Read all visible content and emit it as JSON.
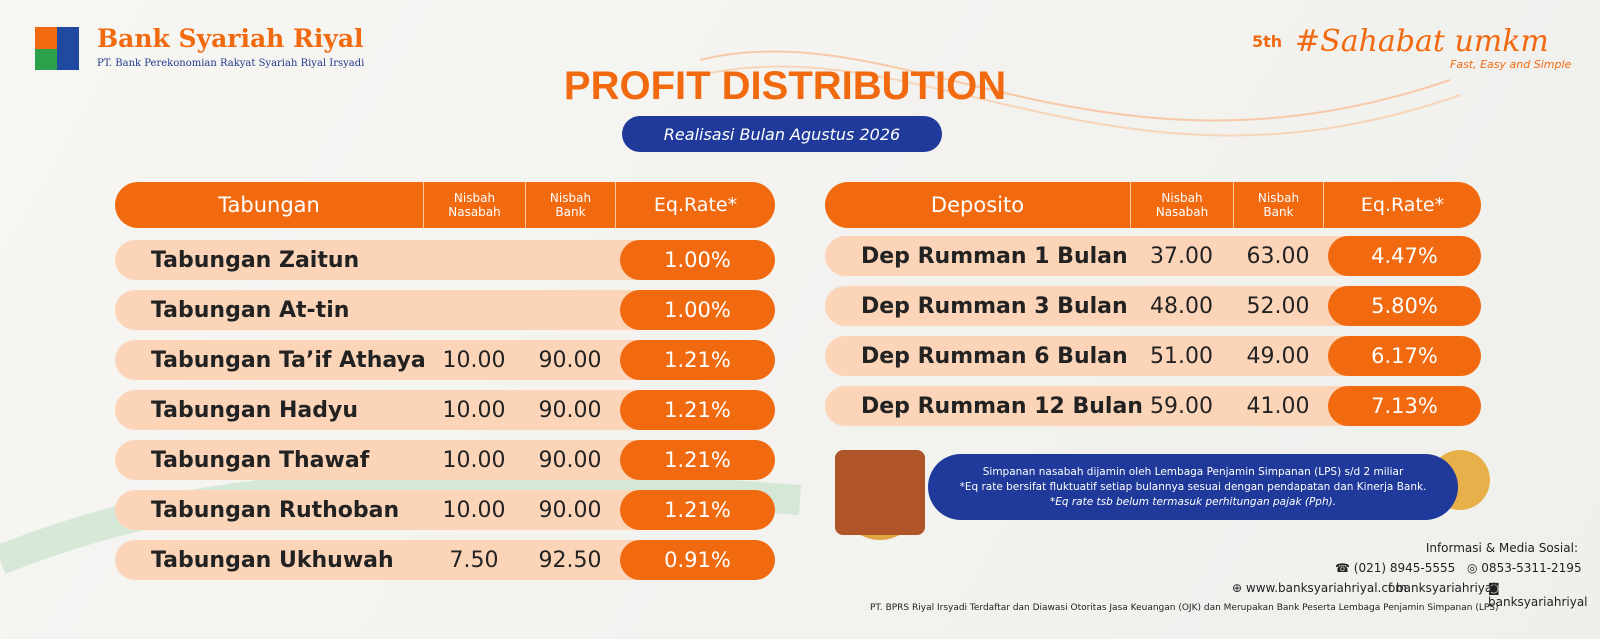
{
  "header": {
    "bank_name": "Bank Syariah Riyal",
    "bank_subtitle": "PT. Bank Perekonomian Rakyat Syariah Riyal Irsyadi"
  },
  "branding": {
    "anniversary": "5th",
    "hashtag": "#Sahabat umkm",
    "tagline": "Fast, Easy and Simple"
  },
  "title": "PROFIT DISTRIBUTION",
  "subtitle": "Realisasi Bulan Agustus 2026",
  "tabungan": {
    "header": [
      "Tabungan",
      "Nisbah Nasabah",
      "Nisbah Bank",
      "Eq.Rate*"
    ],
    "rows": [
      {
        "name": "Tabungan Zaitun",
        "rate": "1.00%"
      },
      {
        "name": "Tabungan At-tin",
        "rate": "1.00%"
      },
      {
        "name": "Tabungan Ta’if Athaya",
        "nasabah": "10.00",
        "bank": "90.00",
        "rate": "1.21%"
      },
      {
        "name": "Tabungan Hadyu",
        "nasabah": "10.00",
        "bank": "90.00",
        "rate": "1.21%"
      },
      {
        "name": "Tabungan Thawaf",
        "nasabah": "10.00",
        "bank": "90.00",
        "rate": "1.21%"
      },
      {
        "name": "Tabungan Ruthoban",
        "nasabah": "10.00",
        "bank": "90.00",
        "rate": "1.21%"
      },
      {
        "name": "Tabungan Ukhuwah",
        "nasabah": "7.50",
        "bank": "92.50",
        "rate": "0.91%"
      }
    ]
  },
  "deposito": {
    "header": [
      "Deposito",
      "Nisbah Nasabah",
      "Nisbah Bank",
      "Eq.Rate*"
    ],
    "rows": [
      {
        "name": "Dep Rumman 1 Bulan",
        "nasabah": "37.00",
        "bank": "63.00",
        "rate": "4.47%"
      },
      {
        "name": "Dep Rumman 3 Bulan",
        "nasabah": "48.00",
        "bank": "52.00",
        "rate": "5.80%"
      },
      {
        "name": "Dep Rumman 6 Bulan",
        "nasabah": "51.00",
        "bank": "49.00",
        "rate": "6.17%"
      },
      {
        "name": "Dep Rumman 12 Bulan",
        "nasabah": "59.00",
        "bank": "41.00",
        "rate": "7.13%"
      }
    ]
  },
  "notice": [
    "Simpanan nasabah dijamin oleh Lembaga Penjamin Simpanan (LPS) s/d 2 miliar",
    "*Eq rate bersifat fluktuatif setiap bulannya sesuai dengan pendapatan dan Kinerja Bank.",
    "*Eq rate tsb belum termasuk perhitungan pajak (Pph)."
  ],
  "contact": {
    "heading": "Informasi & Media Sosial:",
    "phone": "(021) 8945-5555",
    "whatsapp": "0853-5311-2195",
    "website": "www.banksyariahriyal.com",
    "facebook": "banksyariahriyal",
    "instagram": "banksyariahriyal"
  },
  "footer": "PT. BPRS Riyal Irsyadi Terdaftar dan Diawasi Otoritas Jasa Keuangan (OJK) dan Merupakan Bank Peserta Lembaga Penjamin Simpanan (LPS)"
}
